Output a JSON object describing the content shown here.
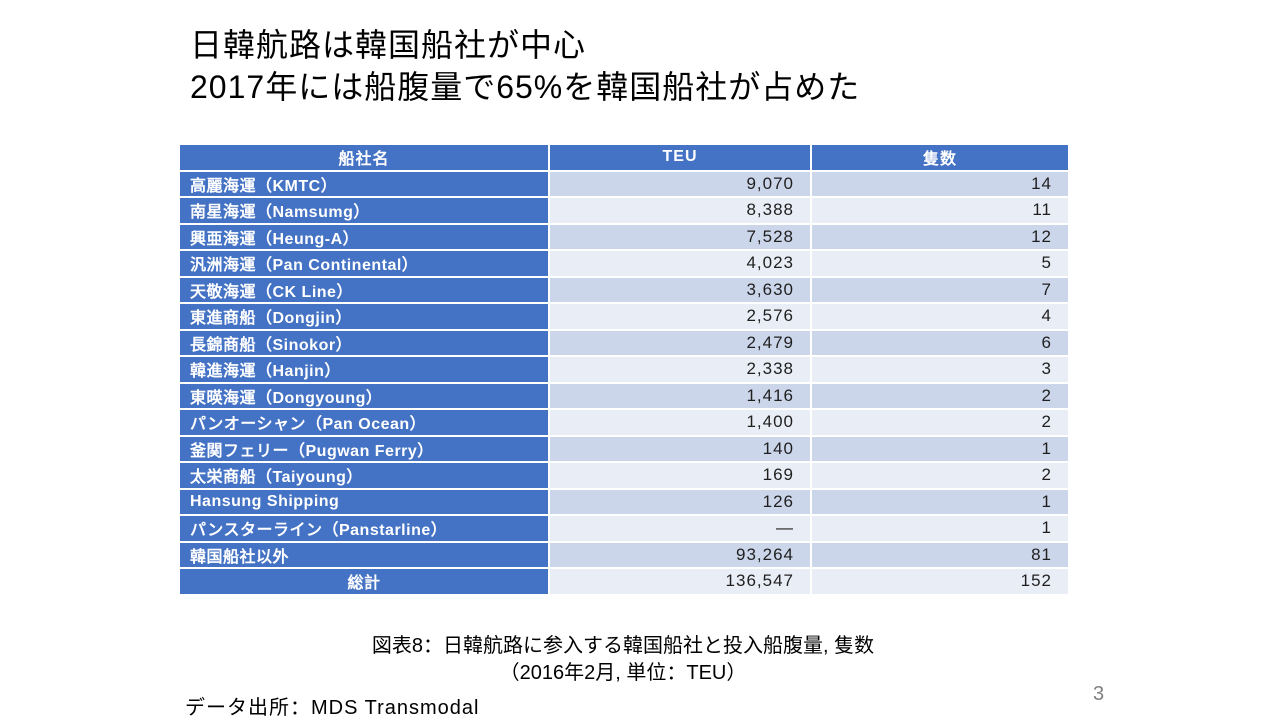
{
  "slide": {
    "title_line1": "日韓航路は韓国船社が中心",
    "title_line2": "2017年には船腹量で65%を韓国船社が占めた",
    "caption_line1": "図表8：日韓航路に参入する韓国船社と投入船腹量, 隻数",
    "caption_line2": "（2016年2月, 単位：TEU）",
    "source": "データ出所：MDS Transmodal",
    "page_number": "3"
  },
  "table": {
    "headers": [
      "船社名",
      "TEU",
      "隻数"
    ],
    "rows": [
      {
        "name": "高麗海運（KMTC）",
        "teu": "9,070",
        "ships": "14"
      },
      {
        "name": "南星海運（Namsumg）",
        "teu": "8,388",
        "ships": "11"
      },
      {
        "name": "興亜海運（Heung-A）",
        "teu": "7,528",
        "ships": "12"
      },
      {
        "name": "汎洲海運（Pan Continental）",
        "teu": "4,023",
        "ships": "5"
      },
      {
        "name": "天敬海運（CK Line）",
        "teu": "3,630",
        "ships": "7"
      },
      {
        "name": "東進商船（Dongjin）",
        "teu": "2,576",
        "ships": "4"
      },
      {
        "name": "長錦商船（Sinokor）",
        "teu": "2,479",
        "ships": "6"
      },
      {
        "name": "韓進海運（Hanjin）",
        "teu": "2,338",
        "ships": "3"
      },
      {
        "name": "東暎海運（Dongyoung）",
        "teu": "1,416",
        "ships": "2"
      },
      {
        "name": "パンオーシャン（Pan Ocean）",
        "teu": "1,400",
        "ships": "2"
      },
      {
        "name": "釜関フェリー（Pugwan Ferry）",
        "teu": "140",
        "ships": "1"
      },
      {
        "name": "太栄商船（Taiyoung）",
        "teu": "169",
        "ships": "2"
      },
      {
        "name": "Hansung Shipping",
        "teu": "126",
        "ships": "1"
      },
      {
        "name": "パンスターライン（Panstarline）",
        "teu": "—",
        "ships": "1"
      },
      {
        "name": "韓国船社以外",
        "teu": "93,264",
        "ships": "81"
      },
      {
        "name": "総計",
        "teu": "136,547",
        "ships": "152",
        "total": true
      }
    ]
  },
  "colors": {
    "header_bg": "#4472C4",
    "name_col_bg": "#4472C4",
    "row_band_dark": "#CCD6EA",
    "row_band_light": "#E9EDF5"
  }
}
